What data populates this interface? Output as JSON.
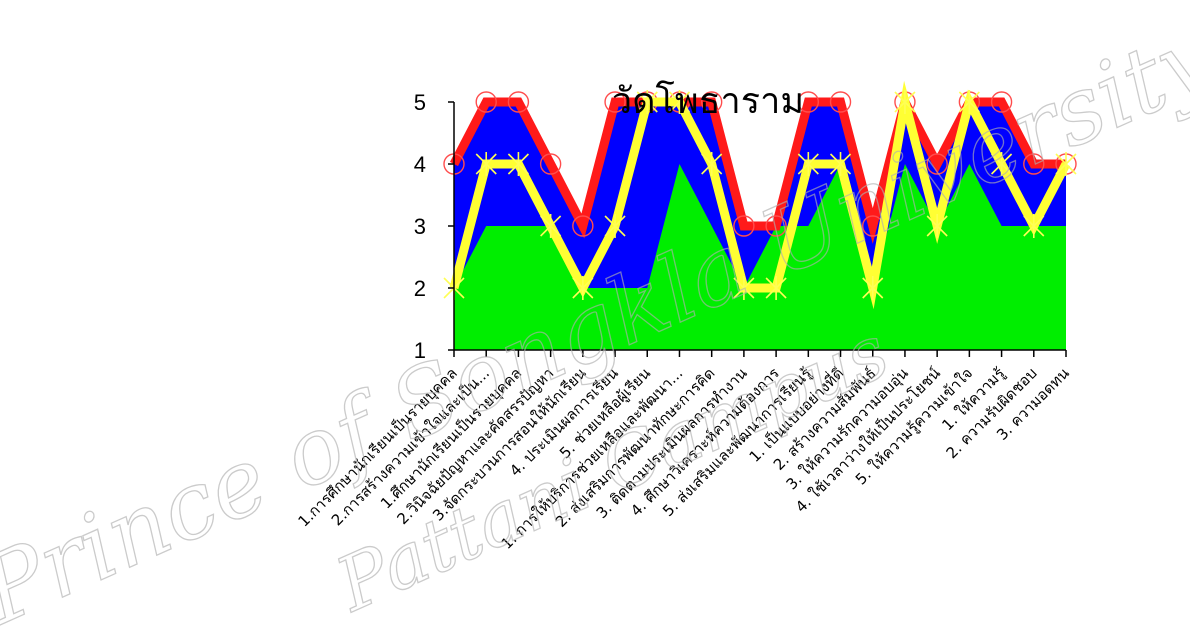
{
  "watermark": {
    "line1": "Prince of Songkla University",
    "line2": "Pattani Campus"
  },
  "chart_data": {
    "type": "area",
    "title": "วัดโพธาราม",
    "xlabel": "",
    "ylabel": "",
    "ylim": [
      1,
      5
    ],
    "yticks": [
      1,
      2,
      3,
      4,
      5
    ],
    "grid": false,
    "legend": "none",
    "categories": [
      "1.การศึกษานักเรียนเป็นรายบุคคล",
      "2.การสร้างความเข้าใจและเป็น...",
      "1.ศึกษานักเรียนเป็นรายบุคคล",
      "2.วินิจฉัยปัญหาและคัดสรรปัญหา",
      "3.จัดกระบวนการสอนให้นักเรียน",
      "4. ประเมินผลการเรียน",
      "5. ช่วยเหลือผู้เรียน",
      "1. การให้บริการช่วยเหลือและพัฒนา...",
      "2. ส่งเสริมการพัฒนาทักษะการคิด",
      "3. ติดตามประเมินผลการทำงาน",
      "4. ศึกษาวิเคราะห์ความต้องการ",
      "5. ส่งเสริมและพัฒนาการเรียนรู้",
      "1. เป็นแบบอย่างที่ดี",
      "2. สร้างความสัมพันธ์",
      "3. ให้ความรักความอบอุ่น",
      "4. ใช้เวลาว่างให้เป็นประโยชน์",
      "5. ให้ความรู้ความเข้าใจ",
      "1. ให้ความรู้",
      "2. ความรับผิดชอบ",
      "3. ความอดทน"
    ],
    "series": [
      {
        "color": "#0000ff",
        "style": "area",
        "values": [
          4,
          5,
          5,
          4,
          3,
          5,
          5,
          5,
          5,
          3,
          3,
          5,
          5,
          3,
          5,
          4,
          5,
          5,
          4,
          4
        ]
      },
      {
        "color": "#00ee00",
        "style": "area",
        "values": [
          2,
          3,
          3,
          3,
          2,
          2,
          2,
          4,
          3,
          2,
          3,
          3,
          4,
          2,
          4,
          3,
          4,
          3,
          3,
          3
        ]
      },
      {
        "color": "#ff1a1a",
        "marker": "circle",
        "style": "line",
        "values": [
          4,
          5,
          5,
          4,
          3,
          5,
          5,
          5,
          5,
          3,
          3,
          5,
          5,
          3,
          5,
          4,
          5,
          5,
          4,
          4
        ]
      },
      {
        "color": "#ffff33",
        "marker": "x",
        "style": "line",
        "values": [
          2,
          4,
          4,
          3,
          2,
          3,
          5,
          5,
          4,
          2,
          2,
          4,
          4,
          2,
          5,
          3,
          5,
          4,
          3,
          4
        ]
      }
    ]
  }
}
